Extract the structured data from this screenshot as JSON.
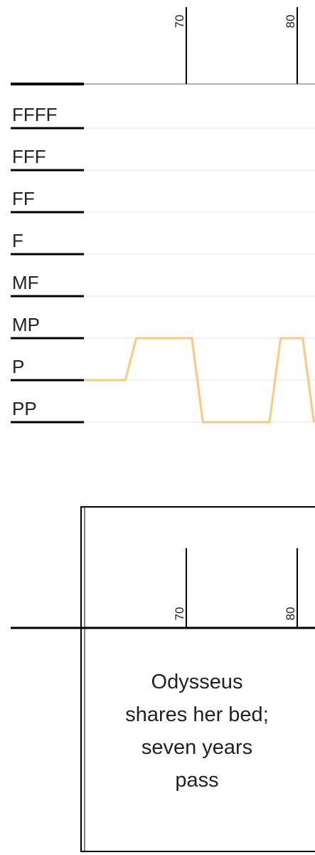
{
  "chart_data": [
    {
      "type": "line",
      "x": [
        60.8,
        64.5,
        65.5,
        70.5,
        71.5,
        77.5,
        78.5,
        80.5,
        81.5
      ],
      "series": [
        {
          "color": "#fcc77e",
          "values": [
            2,
            2,
            3,
            3,
            1,
            1,
            3,
            3,
            1
          ]
        }
      ],
      "xlim": [
        60.77,
        81.6
      ],
      "xticks": [
        70,
        80
      ],
      "ylim": [
        1,
        8
      ],
      "yticks": [
        {
          "value": 8,
          "label": "FFFF"
        },
        {
          "value": 7,
          "label": "FFF"
        },
        {
          "value": 6,
          "label": "FF"
        },
        {
          "value": 5,
          "label": "F"
        },
        {
          "value": 4,
          "label": "MF"
        },
        {
          "value": 3,
          "label": "MP"
        },
        {
          "value": 2,
          "label": "P"
        },
        {
          "value": 1,
          "label": "PP"
        }
      ],
      "grid": true
    },
    {
      "type": "timeline",
      "xlim": [
        60.77,
        81.6
      ],
      "xticks": [
        70,
        80
      ],
      "annotation": [
        "Odysseus",
        "shares her bed;",
        "seven years",
        "pass"
      ]
    }
  ]
}
